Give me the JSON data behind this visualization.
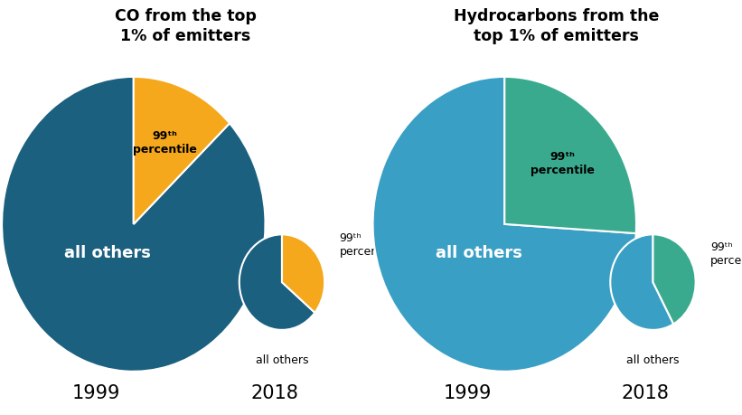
{
  "co_1999": [
    87,
    13
  ],
  "co_2018": [
    64,
    36
  ],
  "hc_1999": [
    74,
    26
  ],
  "hc_2018": [
    58,
    42
  ],
  "co_colors": [
    "#1b607f",
    "#f5a81c"
  ],
  "hc_colors": [
    "#3a9fc5",
    "#3aaa8e"
  ],
  "title_co": "CO from the top\n1% of emitters",
  "title_hc": "Hydrocarbons from the\ntop 1% of emitters",
  "label_all_others": "all others",
  "label_99th": "99ᵗʰ\npercentile",
  "year_1999": "1999",
  "year_2018": "2018",
  "background_color": "#ffffff"
}
